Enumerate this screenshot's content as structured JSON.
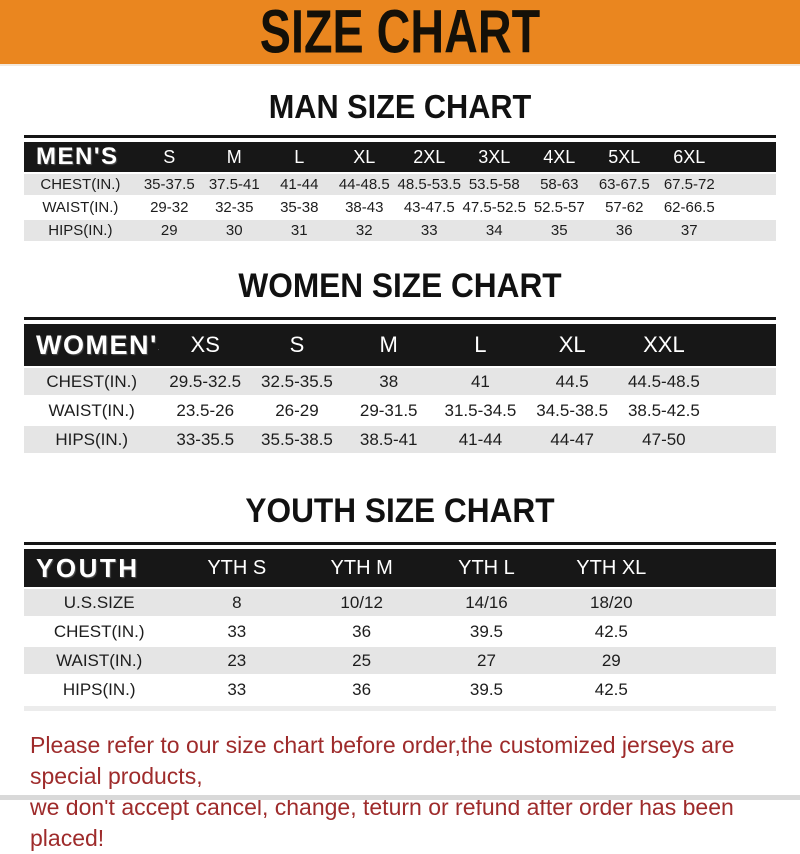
{
  "banner": {
    "title": "SIZE CHART",
    "bg_color": "#EA861F",
    "text_color": "#141008"
  },
  "sections": [
    {
      "id": "men",
      "heading": "MAN SIZE CHART",
      "table": {
        "label": "MEN'S",
        "sizes": [
          "S",
          "M",
          "L",
          "XL",
          "2XL",
          "3XL",
          "4XL",
          "5XL",
          "6XL"
        ],
        "rows": [
          {
            "label": "CHEST(IN.)",
            "values": [
              "35-37.5",
              "37.5-41",
              "41-44",
              "44-48.5",
              "48.5-53.5",
              "53.5-58",
              "58-63",
              "63-67.5",
              "67.5-72"
            ]
          },
          {
            "label": "WAIST(IN.)",
            "values": [
              "29-32",
              "32-35",
              "35-38",
              "38-43",
              "43-47.5",
              "47.5-52.5",
              "52.5-57",
              "57-62",
              "62-66.5"
            ]
          },
          {
            "label": "HIPS(IN.)",
            "values": [
              "29",
              "30",
              "31",
              "32",
              "33",
              "34",
              "35",
              "36",
              "37"
            ]
          }
        ]
      }
    },
    {
      "id": "women",
      "heading": "WOMEN SIZE CHART",
      "table": {
        "label": "WOMEN'S",
        "sizes": [
          "XS",
          "S",
          "M",
          "L",
          "XL",
          "XXL"
        ],
        "rows": [
          {
            "label": "CHEST(IN.)",
            "values": [
              "29.5-32.5",
              "32.5-35.5",
              "38",
              "41",
              "44.5",
              "44.5-48.5"
            ]
          },
          {
            "label": "WAIST(IN.)",
            "values": [
              "23.5-26",
              "26-29",
              "29-31.5",
              "31.5-34.5",
              "34.5-38.5",
              "38.5-42.5"
            ]
          },
          {
            "label": "HIPS(IN.)",
            "values": [
              "33-35.5",
              "35.5-38.5",
              "38.5-41",
              "41-44",
              "44-47",
              "47-50"
            ]
          }
        ]
      }
    },
    {
      "id": "youth",
      "heading": "YOUTH SIZE CHART",
      "table": {
        "label": "YOUTH",
        "sizes": [
          "YTH S",
          "YTH M",
          "YTH L",
          "YTH XL"
        ],
        "rows": [
          {
            "label": "U.S.SIZE",
            "values": [
              "8",
              "10/12",
              "14/16",
              "18/20"
            ]
          },
          {
            "label": "CHEST(IN.)",
            "values": [
              "33",
              "36",
              "39.5",
              "42.5"
            ]
          },
          {
            "label": "WAIST(IN.)",
            "values": [
              "23",
              "25",
              "27",
              "29"
            ]
          },
          {
            "label": "HIPS(IN.)",
            "values": [
              "33",
              "36",
              "39.5",
              "42.5"
            ]
          }
        ]
      }
    }
  ],
  "footer": {
    "line1": "Please refer to our size chart before order,the customized jerseys are special products,",
    "line2": "we don't accept cancel, change, teturn or refund after order has been placed!",
    "text_color": "#9E2B2B"
  },
  "colors": {
    "header_bar": "#171717",
    "row_stripe": "#E5E5E5",
    "row_alt": "#FFFFFF",
    "cell_text": "#1D1D1D"
  }
}
